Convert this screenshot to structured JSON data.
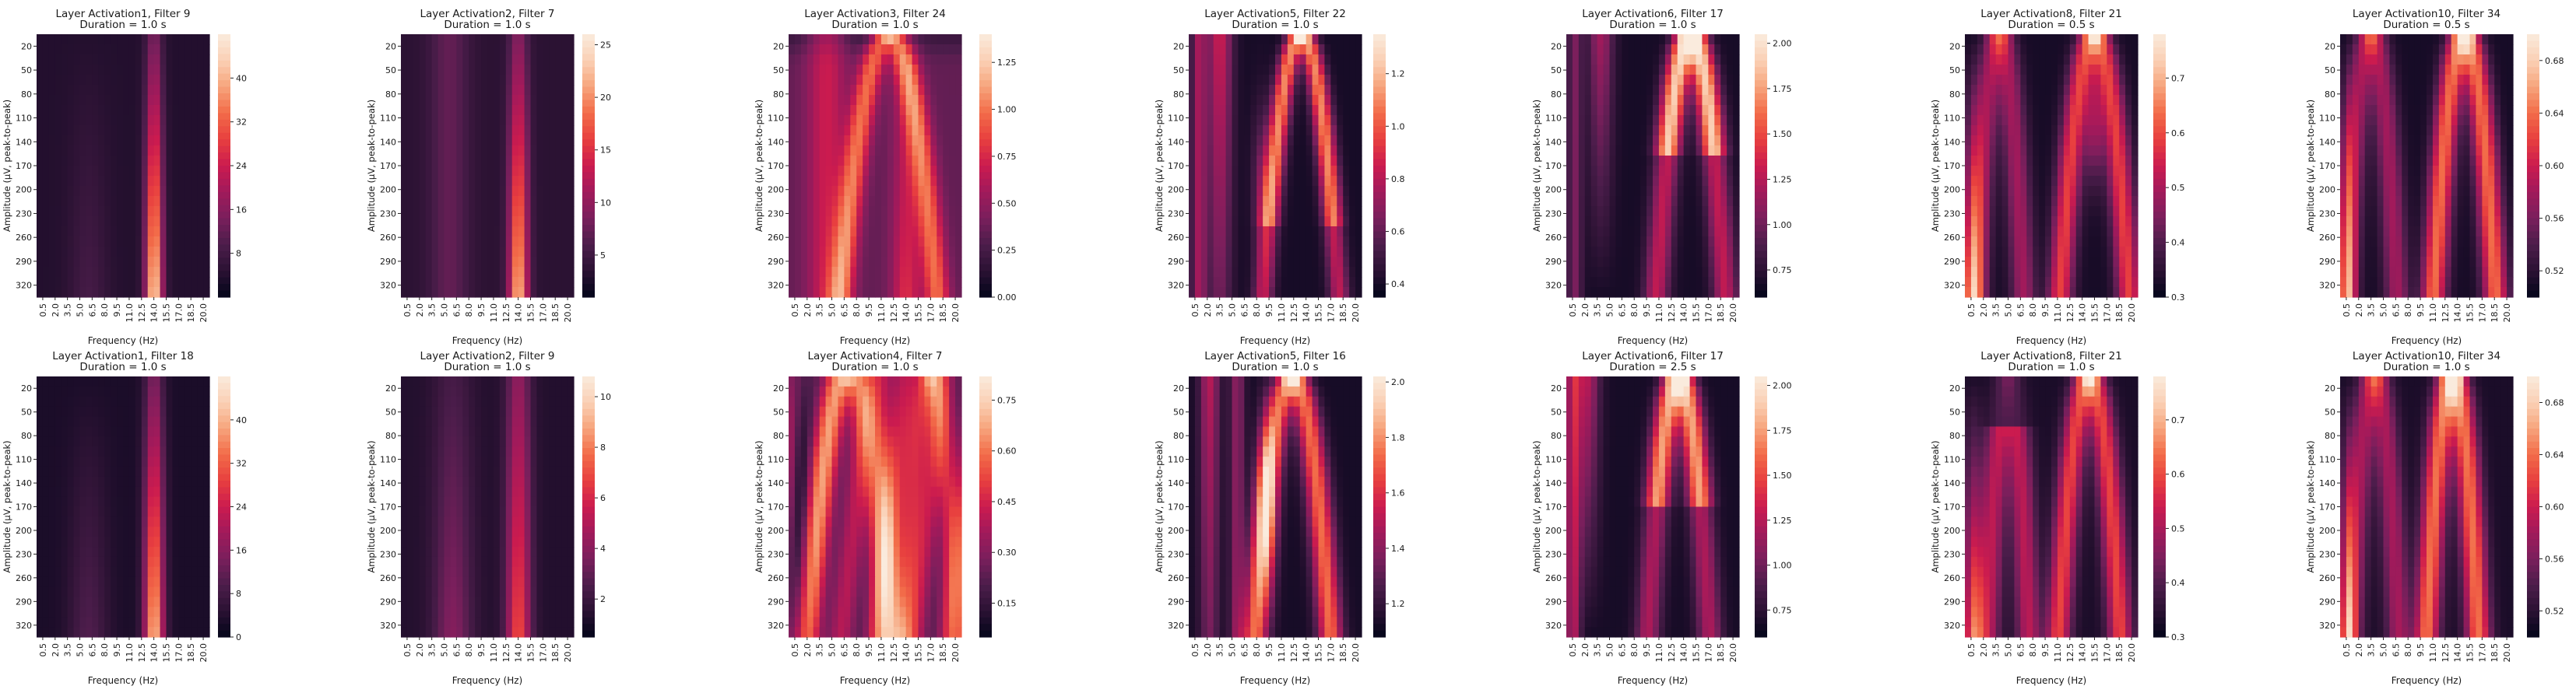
{
  "colormap": "rocket",
  "colormap_stops": [
    "#03051a",
    "#2b1233",
    "#4c1d4b",
    "#7a1f5c",
    "#a11a5b",
    "#cb1b4f",
    "#e83f3f",
    "#f26c49",
    "#f6a47c",
    "#fad0b5",
    "#faebdd"
  ],
  "chart_data": [
    {
      "type": "heatmap",
      "title": "Layer Activation1, Filter 9",
      "subtitle": "Duration = 1.0 s",
      "xlabel": "Frequency (Hz)",
      "ylabel": "Amplitude (μV, peak-to-peak)",
      "x_ticks": [
        "0.5",
        "2.0",
        "3.5",
        "5.0",
        "6.5",
        "8.0",
        "9.5",
        "11.0",
        "12.5",
        "14.0",
        "15.5",
        "17.0",
        "18.5",
        "20.0"
      ],
      "y_ticks": [
        "20",
        "50",
        "80",
        "110",
        "140",
        "170",
        "200",
        "230",
        "260",
        "290",
        "320"
      ],
      "colorbar_ticks": [
        "8",
        "16",
        "24",
        "32",
        "40"
      ],
      "vmin": 0,
      "vmax": 48,
      "pattern": "p1",
      "grid": false
    },
    {
      "type": "heatmap",
      "title": "Layer Activation2, Filter 7",
      "subtitle": "Duration = 1.0 s",
      "xlabel": "Frequency (Hz)",
      "ylabel": "Amplitude (μV, peak-to-peak)",
      "x_ticks": [
        "0.5",
        "2.0",
        "3.5",
        "5.0",
        "6.5",
        "8.0",
        "9.5",
        "11.0",
        "12.5",
        "14.0",
        "15.5",
        "17.0",
        "18.5",
        "20.0"
      ],
      "y_ticks": [
        "20",
        "50",
        "80",
        "110",
        "140",
        "170",
        "200",
        "230",
        "260",
        "290",
        "320"
      ],
      "colorbar_ticks": [
        "5",
        "10",
        "15",
        "20",
        "25"
      ],
      "vmin": 1,
      "vmax": 26,
      "pattern": "p2",
      "grid": false
    },
    {
      "type": "heatmap",
      "title": "Layer Activation3, Filter 24",
      "subtitle": "Duration = 1.0 s",
      "xlabel": "Frequency (Hz)",
      "ylabel": "Amplitude (μV, peak-to-peak)",
      "x_ticks": [
        "0.5",
        "2.0",
        "3.5",
        "5.0",
        "6.5",
        "8.0",
        "9.5",
        "11.0",
        "12.5",
        "14.0",
        "15.5",
        "17.0",
        "18.5",
        "20.0"
      ],
      "y_ticks": [
        "20",
        "50",
        "80",
        "110",
        "140",
        "170",
        "200",
        "230",
        "260",
        "290",
        "320"
      ],
      "colorbar_ticks": [
        "0.00",
        "0.25",
        "0.50",
        "0.75",
        "1.00",
        "1.25"
      ],
      "vmin": 0,
      "vmax": 1.4,
      "pattern": "p3",
      "grid": false
    },
    {
      "type": "heatmap",
      "title": "Layer Activation5, Filter 22",
      "subtitle": "Duration = 1.0 s",
      "xlabel": "Frequency (Hz)",
      "ylabel": "Amplitude (μV, peak-to-peak)",
      "x_ticks": [
        "0.5",
        "2.0",
        "3.5",
        "5.0",
        "6.5",
        "8.0",
        "9.5",
        "11.0",
        "12.5",
        "14.0",
        "15.5",
        "17.0",
        "18.5",
        "20.0"
      ],
      "y_ticks": [
        "20",
        "50",
        "80",
        "110",
        "140",
        "170",
        "200",
        "230",
        "260",
        "290",
        "320"
      ],
      "colorbar_ticks": [
        "0.4",
        "0.6",
        "0.8",
        "1.0",
        "1.2"
      ],
      "vmin": 0.35,
      "vmax": 1.35,
      "pattern": "p4",
      "grid": false
    },
    {
      "type": "heatmap",
      "title": "Layer Activation6, Filter 17",
      "subtitle": "Duration = 1.0 s",
      "xlabel": "Frequency (Hz)",
      "ylabel": "Amplitude (μV, peak-to-peak)",
      "x_ticks": [
        "0.5",
        "2.0",
        "3.5",
        "5.0",
        "6.5",
        "8.0",
        "9.5",
        "11.0",
        "12.5",
        "14.0",
        "15.5",
        "17.0",
        "18.5",
        "20.0"
      ],
      "y_ticks": [
        "20",
        "50",
        "80",
        "110",
        "140",
        "170",
        "200",
        "230",
        "260",
        "290",
        "320"
      ],
      "colorbar_ticks": [
        "0.75",
        "1.00",
        "1.25",
        "1.50",
        "1.75",
        "2.00"
      ],
      "vmin": 0.6,
      "vmax": 2.05,
      "pattern": "p5",
      "grid": false
    },
    {
      "type": "heatmap",
      "title": "Layer Activation8, Filter 21",
      "subtitle": "Duration = 0.5 s",
      "xlabel": "Frequency (Hz)",
      "ylabel": "Amplitude (μV, peak-to-peak)",
      "x_ticks": [
        "0.5",
        "2.0",
        "3.5",
        "5.0",
        "6.5",
        "8.0",
        "9.5",
        "11.0",
        "12.5",
        "14.0",
        "15.5",
        "17.0",
        "18.5",
        "20.0"
      ],
      "y_ticks": [
        "20",
        "50",
        "80",
        "110",
        "140",
        "170",
        "200",
        "230",
        "260",
        "290",
        "320"
      ],
      "colorbar_ticks": [
        "0.3",
        "0.4",
        "0.5",
        "0.6",
        "0.7"
      ],
      "vmin": 0.3,
      "vmax": 0.78,
      "pattern": "p6",
      "grid": false
    },
    {
      "type": "heatmap",
      "title": "Layer Activation10, Filter 34",
      "subtitle": "Duration = 0.5 s",
      "xlabel": "Frequency (Hz)",
      "ylabel": "Amplitude (μV, peak-to-peak)",
      "x_ticks": [
        "0.5",
        "2.0",
        "3.5",
        "5.0",
        "6.5",
        "8.0",
        "9.5",
        "11.0",
        "12.5",
        "14.0",
        "15.5",
        "17.0",
        "18.5",
        "20.0"
      ],
      "y_ticks": [
        "20",
        "50",
        "80",
        "110",
        "140",
        "170",
        "200",
        "230",
        "260",
        "290",
        "320"
      ],
      "colorbar_ticks": [
        "0.52",
        "0.56",
        "0.60",
        "0.64",
        "0.68"
      ],
      "vmin": 0.5,
      "vmax": 0.7,
      "pattern": "p7",
      "grid": false
    },
    {
      "type": "heatmap",
      "title": "Layer Activation1, Filter 18",
      "subtitle": "Duration = 1.0 s",
      "xlabel": "Frequency (Hz)",
      "ylabel": "Amplitude (μV, peak-to-peak)",
      "x_ticks": [
        "0.5",
        "2.0",
        "3.5",
        "5.0",
        "6.5",
        "8.0",
        "9.5",
        "11.0",
        "12.5",
        "14.0",
        "15.5",
        "17.0",
        "18.5",
        "20.0"
      ],
      "y_ticks": [
        "20",
        "50",
        "80",
        "110",
        "140",
        "170",
        "200",
        "230",
        "260",
        "290",
        "320"
      ],
      "colorbar_ticks": [
        "0",
        "8",
        "16",
        "24",
        "32",
        "40"
      ],
      "vmin": 0,
      "vmax": 48,
      "pattern": "p8",
      "grid": false
    },
    {
      "type": "heatmap",
      "title": "Layer Activation2, Filter 9",
      "subtitle": "Duration = 1.0 s",
      "xlabel": "Frequency (Hz)",
      "ylabel": "Amplitude (μV, peak-to-peak)",
      "x_ticks": [
        "0.5",
        "2.0",
        "3.5",
        "5.0",
        "6.5",
        "8.0",
        "9.5",
        "11.0",
        "12.5",
        "14.0",
        "15.5",
        "17.0",
        "18.5",
        "20.0"
      ],
      "y_ticks": [
        "20",
        "50",
        "80",
        "110",
        "140",
        "170",
        "200",
        "230",
        "260",
        "290",
        "320"
      ],
      "colorbar_ticks": [
        "2",
        "4",
        "6",
        "8",
        "10"
      ],
      "vmin": 0.5,
      "vmax": 10.8,
      "pattern": "p9",
      "grid": false
    },
    {
      "type": "heatmap",
      "title": "Layer Activation4, Filter 7",
      "subtitle": "Duration = 1.0 s",
      "xlabel": "Frequency (Hz)",
      "ylabel": "Amplitude (μV, peak-to-peak)",
      "x_ticks": [
        "0.5",
        "2.0",
        "3.5",
        "5.0",
        "6.5",
        "8.0",
        "9.5",
        "11.0",
        "12.5",
        "14.0",
        "15.5",
        "17.0",
        "18.5",
        "20.0"
      ],
      "y_ticks": [
        "20",
        "50",
        "80",
        "110",
        "140",
        "170",
        "200",
        "230",
        "260",
        "290",
        "320"
      ],
      "colorbar_ticks": [
        "0.15",
        "0.30",
        "0.45",
        "0.60",
        "0.75"
      ],
      "vmin": 0.05,
      "vmax": 0.82,
      "pattern": "p10",
      "grid": false
    },
    {
      "type": "heatmap",
      "title": "Layer Activation5, Filter 16",
      "subtitle": "Duration = 1.0 s",
      "xlabel": "Frequency (Hz)",
      "ylabel": "Amplitude (μV, peak-to-peak)",
      "x_ticks": [
        "0.5",
        "2.0",
        "3.5",
        "5.0",
        "6.5",
        "8.0",
        "9.5",
        "11.0",
        "12.5",
        "14.0",
        "15.5",
        "17.0",
        "18.5",
        "20.0"
      ],
      "y_ticks": [
        "20",
        "50",
        "80",
        "110",
        "140",
        "170",
        "200",
        "230",
        "260",
        "290",
        "320"
      ],
      "colorbar_ticks": [
        "1.2",
        "1.4",
        "1.6",
        "1.8",
        "2.0"
      ],
      "vmin": 1.08,
      "vmax": 2.02,
      "pattern": "p11",
      "grid": false
    },
    {
      "type": "heatmap",
      "title": "Layer Activation6, Filter 17",
      "subtitle": "Duration = 2.5 s",
      "xlabel": "Frequency (Hz)",
      "ylabel": "Amplitude (μV, peak-to-peak)",
      "x_ticks": [
        "0.5",
        "2.0",
        "3.5",
        "5.0",
        "6.5",
        "8.0",
        "9.5",
        "11.0",
        "12.5",
        "14.0",
        "15.5",
        "17.0",
        "18.5",
        "20.0"
      ],
      "y_ticks": [
        "20",
        "50",
        "80",
        "110",
        "140",
        "170",
        "200",
        "230",
        "260",
        "290",
        "320"
      ],
      "colorbar_ticks": [
        "0.75",
        "1.00",
        "1.25",
        "1.50",
        "1.75",
        "2.00"
      ],
      "vmin": 0.6,
      "vmax": 2.05,
      "pattern": "p12",
      "grid": false
    },
    {
      "type": "heatmap",
      "title": "Layer Activation8, Filter 21",
      "subtitle": "Duration = 1.0 s",
      "xlabel": "Frequency (Hz)",
      "ylabel": "Amplitude (μV, peak-to-peak)",
      "x_ticks": [
        "0.5",
        "2.0",
        "3.5",
        "5.0",
        "6.5",
        "8.0",
        "9.5",
        "11.0",
        "12.5",
        "14.0",
        "15.5",
        "17.0",
        "18.5",
        "20.0"
      ],
      "y_ticks": [
        "20",
        "50",
        "80",
        "110",
        "140",
        "170",
        "200",
        "230",
        "260",
        "290",
        "320"
      ],
      "colorbar_ticks": [
        "0.3",
        "0.4",
        "0.5",
        "0.6",
        "0.7"
      ],
      "vmin": 0.3,
      "vmax": 0.78,
      "pattern": "p13",
      "grid": false
    },
    {
      "type": "heatmap",
      "title": "Layer Activation10, Filter 34",
      "subtitle": "Duration = 1.0 s",
      "xlabel": "Frequency (Hz)",
      "ylabel": "Amplitude (μV, peak-to-peak)",
      "x_ticks": [
        "0.5",
        "2.0",
        "3.5",
        "5.0",
        "6.5",
        "8.0",
        "9.5",
        "11.0",
        "12.5",
        "14.0",
        "15.5",
        "17.0",
        "18.5",
        "20.0"
      ],
      "y_ticks": [
        "20",
        "50",
        "80",
        "110",
        "140",
        "170",
        "200",
        "230",
        "260",
        "290",
        "320"
      ],
      "colorbar_ticks": [
        "0.52",
        "0.56",
        "0.60",
        "0.64",
        "0.68"
      ],
      "vmin": 0.5,
      "vmax": 0.7,
      "pattern": "p14",
      "grid": false
    }
  ]
}
